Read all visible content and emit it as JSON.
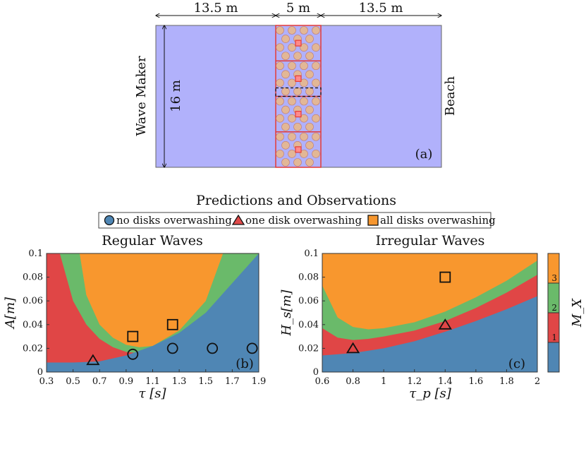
{
  "panel_a": {
    "dim_left": "13.5 m",
    "dim_middle": "5 m",
    "dim_right": "13.5 m",
    "dim_height": "16 m",
    "left_label": "Wave Maker",
    "right_label": "Beach",
    "panel_label": "(a)",
    "colors": {
      "tank": "#b1b1fb",
      "disk": "#e2b796",
      "box": "#e53a35"
    }
  },
  "suptitle": "Predictions and Observations",
  "legend": [
    {
      "label": "no disks overwashing",
      "marker": "circle",
      "color": "#4f86b4"
    },
    {
      "label": "one disk overwashing",
      "marker": "triangle",
      "color": "#e04a4a"
    },
    {
      "label": "all disks overwashing",
      "marker": "square",
      "color": "#f6962e"
    }
  ],
  "colorbar": {
    "label": "M_X",
    "ticks": [
      "1",
      "2",
      "3"
    ],
    "colors": [
      "#4f86b4",
      "#e04646",
      "#6aba6a",
      "#f8972e"
    ]
  },
  "chart_data": [
    {
      "type": "heatmap",
      "title": "Regular Waves",
      "xlabel": "τ [s]",
      "ylabel": "A[m]",
      "panel_label": "(b)",
      "xlim": [
        0.3,
        1.9
      ],
      "ylim": [
        0,
        0.1
      ],
      "xticks": [
        "0.3",
        "0.5",
        "0.7",
        "0.9",
        "1.1",
        "1.3",
        "1.5",
        "1.7",
        "1.9"
      ],
      "yticks": [
        "0",
        "0.02",
        "0.04",
        "0.06",
        "0.08",
        "0.1"
      ],
      "regions": {
        "boundary_1_2": {
          "x": [
            0.3,
            0.5,
            0.7,
            0.9,
            1.1,
            1.3,
            1.5,
            1.7,
            1.9
          ],
          "y": [
            0.008,
            0.008,
            0.009,
            0.014,
            0.022,
            0.033,
            0.05,
            0.075,
            0.1
          ]
        },
        "boundary_2_3": {
          "x": [
            0.4,
            0.5,
            0.6,
            0.7,
            0.8,
            0.9,
            1.0,
            1.1
          ],
          "y": [
            0.1,
            0.06,
            0.04,
            0.028,
            0.021,
            0.017,
            0.016,
            0.019
          ]
        },
        "boundary_3_4": {
          "x": [
            0.55,
            0.6,
            0.7,
            0.8,
            0.9,
            1.0,
            1.1,
            1.3,
            1.5,
            1.63
          ],
          "y": [
            0.1,
            0.065,
            0.04,
            0.029,
            0.023,
            0.021,
            0.022,
            0.035,
            0.06,
            0.1
          ]
        }
      },
      "observations": [
        {
          "x": 0.65,
          "y": 0.01,
          "marker": "triangle"
        },
        {
          "x": 0.95,
          "y": 0.015,
          "marker": "circle"
        },
        {
          "x": 1.25,
          "y": 0.02,
          "marker": "circle"
        },
        {
          "x": 1.55,
          "y": 0.02,
          "marker": "circle"
        },
        {
          "x": 1.85,
          "y": 0.02,
          "marker": "circle"
        },
        {
          "x": 0.95,
          "y": 0.03,
          "marker": "square"
        },
        {
          "x": 1.25,
          "y": 0.04,
          "marker": "square"
        }
      ]
    },
    {
      "type": "heatmap",
      "title": "Irregular Waves",
      "xlabel": "τ_p [s]",
      "ylabel": "H_s[m]",
      "panel_label": "(c)",
      "xlim": [
        0.6,
        2.0
      ],
      "ylim": [
        0,
        0.1
      ],
      "xticks": [
        "0.6",
        "0.8",
        "1",
        "1.2",
        "1.4",
        "1.6",
        "1.8",
        "2"
      ],
      "yticks": [
        "0",
        "0.02",
        "0.04",
        "0.06",
        "0.08",
        "0.1"
      ],
      "regions": {
        "boundary_1_2": {
          "x": [
            0.6,
            0.8,
            1.0,
            1.2,
            1.4,
            1.6,
            1.8,
            2.0
          ],
          "y": [
            0.014,
            0.016,
            0.02,
            0.026,
            0.034,
            0.043,
            0.053,
            0.064
          ]
        },
        "boundary_2_3": {
          "x": [
            0.6,
            0.7,
            0.8,
            0.9,
            1.0,
            1.2,
            1.4,
            1.6,
            1.8,
            2.0
          ],
          "y": [
            0.037,
            0.029,
            0.027,
            0.028,
            0.03,
            0.035,
            0.043,
            0.054,
            0.067,
            0.082
          ]
        },
        "boundary_3_4": {
          "x": [
            0.6,
            0.7,
            0.8,
            0.9,
            1.0,
            1.2,
            1.4,
            1.6,
            1.8,
            2.0
          ],
          "y": [
            0.073,
            0.046,
            0.038,
            0.036,
            0.037,
            0.042,
            0.051,
            0.063,
            0.077,
            0.094
          ]
        }
      },
      "observations": [
        {
          "x": 0.8,
          "y": 0.02,
          "marker": "triangle"
        },
        {
          "x": 1.4,
          "y": 0.04,
          "marker": "triangle"
        },
        {
          "x": 1.4,
          "y": 0.08,
          "marker": "square"
        }
      ]
    }
  ]
}
